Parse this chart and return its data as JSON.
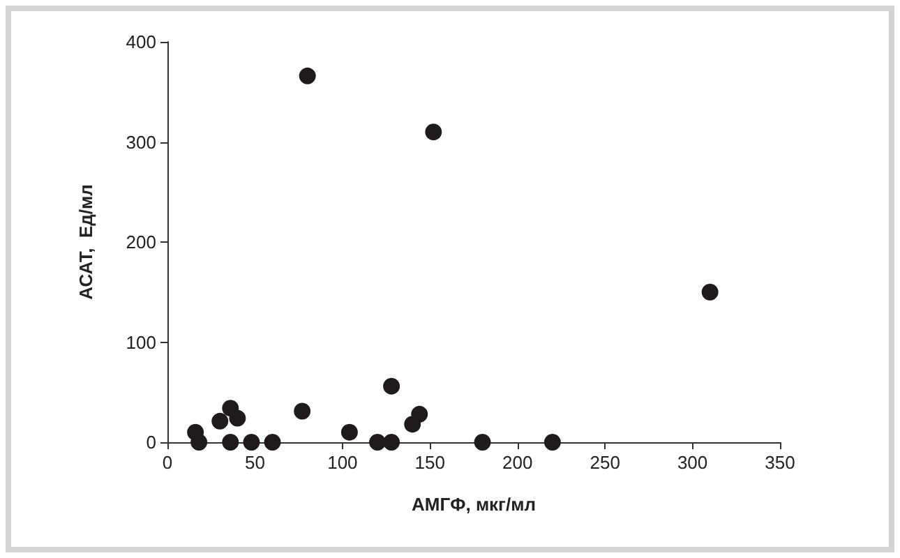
{
  "chart_data": {
    "type": "scatter",
    "xlabel": "АМГФ, мкг/мл",
    "ylabel": "АСАТ,  Ед/мл",
    "x": [
      16,
      18,
      30,
      36,
      40,
      36,
      48,
      60,
      77,
      80,
      104,
      120,
      128,
      128,
      140,
      144,
      152,
      180,
      220,
      310
    ],
    "series": [
      {
        "color": "#1f1a1b",
        "values": [
          10,
          0,
          21,
          34,
          24,
          0,
          0,
          0,
          31,
          366,
          10,
          0,
          56,
          0,
          18,
          28,
          310,
          0,
          0,
          150
        ]
      }
    ],
    "xlim": [
      0,
      350
    ],
    "xticks": [
      0,
      50,
      100,
      150,
      200,
      250,
      300,
      350
    ],
    "ylim": [
      0,
      400
    ],
    "yticks": [
      0,
      100,
      200,
      300,
      400
    ],
    "marker": "circle"
  }
}
